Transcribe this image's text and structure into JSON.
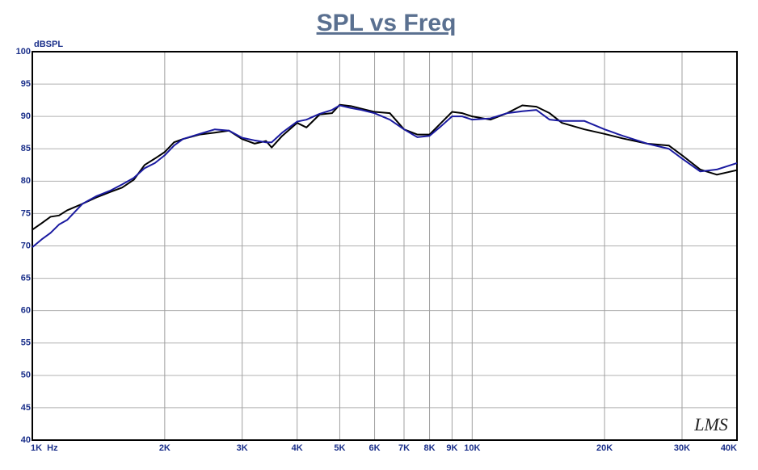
{
  "chart_data": {
    "type": "line",
    "title": "SPL vs Freq",
    "y_label": "dBSPL",
    "logo": "LMS",
    "xscale": "log",
    "grid": true,
    "x": [
      1000,
      1050,
      1100,
      1150,
      1200,
      1300,
      1400,
      1500,
      1600,
      1700,
      1800,
      1900,
      2000,
      2100,
      2200,
      2400,
      2600,
      2800,
      3000,
      3200,
      3400,
      3500,
      3700,
      4000,
      4200,
      4500,
      4800,
      5000,
      5300,
      5600,
      6000,
      6500,
      7000,
      7500,
      8000,
      8500,
      9000,
      9500,
      10000,
      11000,
      12000,
      13000,
      14000,
      15000,
      16000,
      18000,
      20000,
      22000,
      25000,
      28000,
      30000,
      33000,
      36000,
      40000
    ],
    "series": [
      {
        "color": "#000000",
        "values": [
          72.5,
          73.5,
          74.5,
          74.7,
          75.5,
          76.5,
          77.5,
          78.3,
          79,
          80.2,
          82.5,
          83.5,
          84.5,
          86,
          86.5,
          87.2,
          87.5,
          87.8,
          86.5,
          85.8,
          86.2,
          85.2,
          87,
          89,
          88.3,
          90.3,
          90.5,
          91.8,
          91.6,
          91.2,
          90.7,
          90.5,
          88,
          87.2,
          87.2,
          89,
          90.7,
          90.5,
          90,
          89.5,
          90.5,
          91.7,
          91.5,
          90.5,
          89,
          88,
          87.3,
          86.6,
          85.8,
          85.5,
          84,
          81.8,
          81,
          81.7
        ]
      },
      {
        "color": "#1a1aa0",
        "values": [
          69.8,
          71,
          72,
          73.3,
          74,
          76.5,
          77.7,
          78.5,
          79.5,
          80.5,
          82,
          82.8,
          84,
          85.5,
          86.5,
          87.3,
          88,
          87.8,
          86.7,
          86.3,
          86,
          86,
          87.5,
          89.2,
          89.5,
          90.4,
          91,
          91.7,
          91.3,
          91,
          90.5,
          89.5,
          88,
          86.8,
          87,
          88.5,
          90,
          90,
          89.5,
          89.7,
          90.5,
          90.8,
          91,
          89.5,
          89.3,
          89.3,
          88,
          87,
          85.8,
          85,
          83.5,
          81.5,
          81.8,
          82.8
        ]
      }
    ],
    "xlim": [
      1000,
      40000
    ],
    "xticks": [
      {
        "value": 1000,
        "label": "1K  Hz"
      },
      {
        "value": 2000,
        "label": "2K"
      },
      {
        "value": 3000,
        "label": "3K"
      },
      {
        "value": 4000,
        "label": "4K"
      },
      {
        "value": 5000,
        "label": "5K"
      },
      {
        "value": 6000,
        "label": "6K"
      },
      {
        "value": 7000,
        "label": "7K"
      },
      {
        "value": 8000,
        "label": "8K"
      },
      {
        "value": 9000,
        "label": "9K"
      },
      {
        "value": 10000,
        "label": "10K"
      },
      {
        "value": 20000,
        "label": "20K"
      },
      {
        "value": 30000,
        "label": "30K"
      },
      {
        "value": 40000,
        "label": "40K"
      }
    ],
    "ylim": [
      40,
      100
    ],
    "yticks": [
      40,
      45,
      50,
      55,
      60,
      65,
      70,
      75,
      80,
      85,
      90,
      95,
      100
    ]
  }
}
